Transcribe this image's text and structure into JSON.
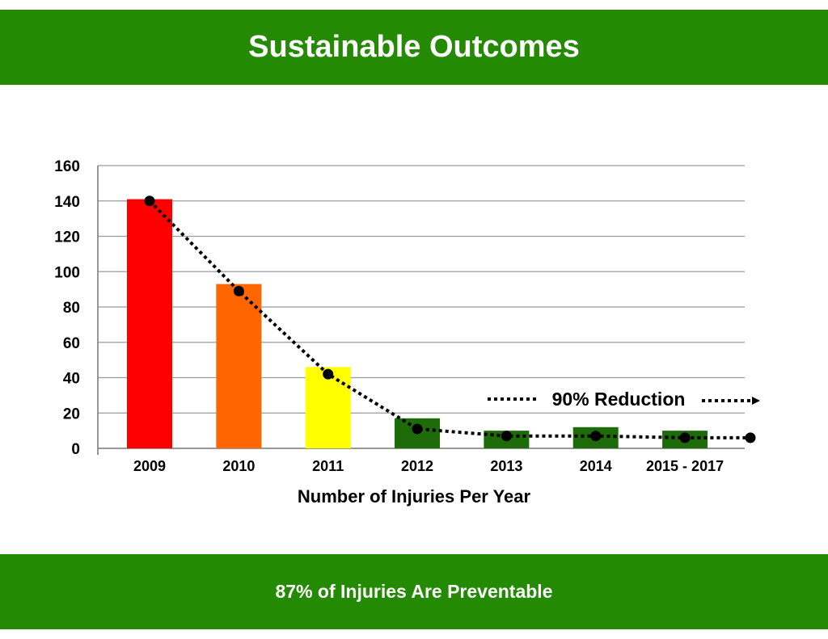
{
  "header": {
    "title": "Sustainable Outcomes"
  },
  "footer": {
    "text": "87% of Injuries Are Preventable"
  },
  "colors": {
    "banner": "#258A03",
    "bar_2009": "#FF0000",
    "bar_2010": "#FF6600",
    "bar_2011": "#FFFF00",
    "bar_green": "#1E6B0A",
    "trendline": "#000000"
  },
  "chart_data": {
    "type": "bar",
    "title": "",
    "xlabel": "Number of Injuries Per Year",
    "ylabel": "",
    "ylim": [
      0,
      160
    ],
    "yticks": [
      0,
      20,
      40,
      60,
      80,
      100,
      120,
      140,
      160
    ],
    "grid": true,
    "categories": [
      "2009",
      "2010",
      "2011",
      "2012",
      "2013",
      "2014",
      "2015 - 2017"
    ],
    "values": [
      141,
      93,
      46,
      17,
      10,
      12,
      10
    ],
    "bar_colors": [
      "#FF0000",
      "#FF6600",
      "#FFFF00",
      "#1E6B0A",
      "#1E6B0A",
      "#1E6B0A",
      "#1E6B0A"
    ],
    "trend": {
      "style": "dotted",
      "points": [
        140,
        89,
        42,
        11,
        7,
        7,
        6,
        6
      ]
    },
    "annotation": {
      "text": "90% Reduction",
      "style": "dotted double arrow"
    }
  }
}
